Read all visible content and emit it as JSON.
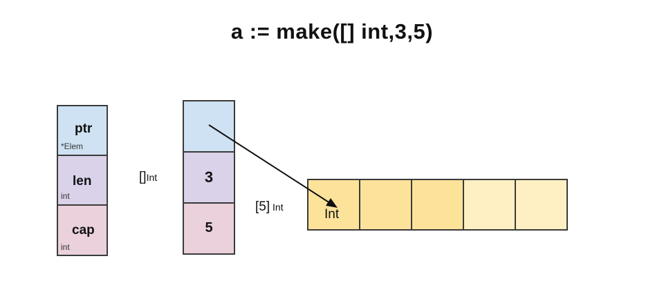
{
  "title": "a := make([] int,3,5)",
  "header_struct": {
    "fields": [
      {
        "name": "ptr",
        "type": "*Elem",
        "color": "#cfe2f3"
      },
      {
        "name": "len",
        "type": "int",
        "color": "#d9d2e9"
      },
      {
        "name": "cap",
        "type": "int",
        "color": "#ead1dc"
      }
    ]
  },
  "slice": {
    "type_bracket": "[]",
    "type_name": "Int",
    "cells": [
      {
        "value": "",
        "color": "#cfe2f3"
      },
      {
        "value": "3",
        "color": "#d9d2e9"
      },
      {
        "value": "5",
        "color": "#ead1dc"
      }
    ]
  },
  "array": {
    "type_bracket": "[5]",
    "type_name": "Int",
    "first_label": "Int",
    "cell_colors": [
      "#fde39a",
      "#fde39a",
      "#fde39a",
      "#fff0c4",
      "#fff0c4"
    ]
  },
  "colors": {
    "border": "#3a3a3a",
    "arrow": "#111111"
  }
}
